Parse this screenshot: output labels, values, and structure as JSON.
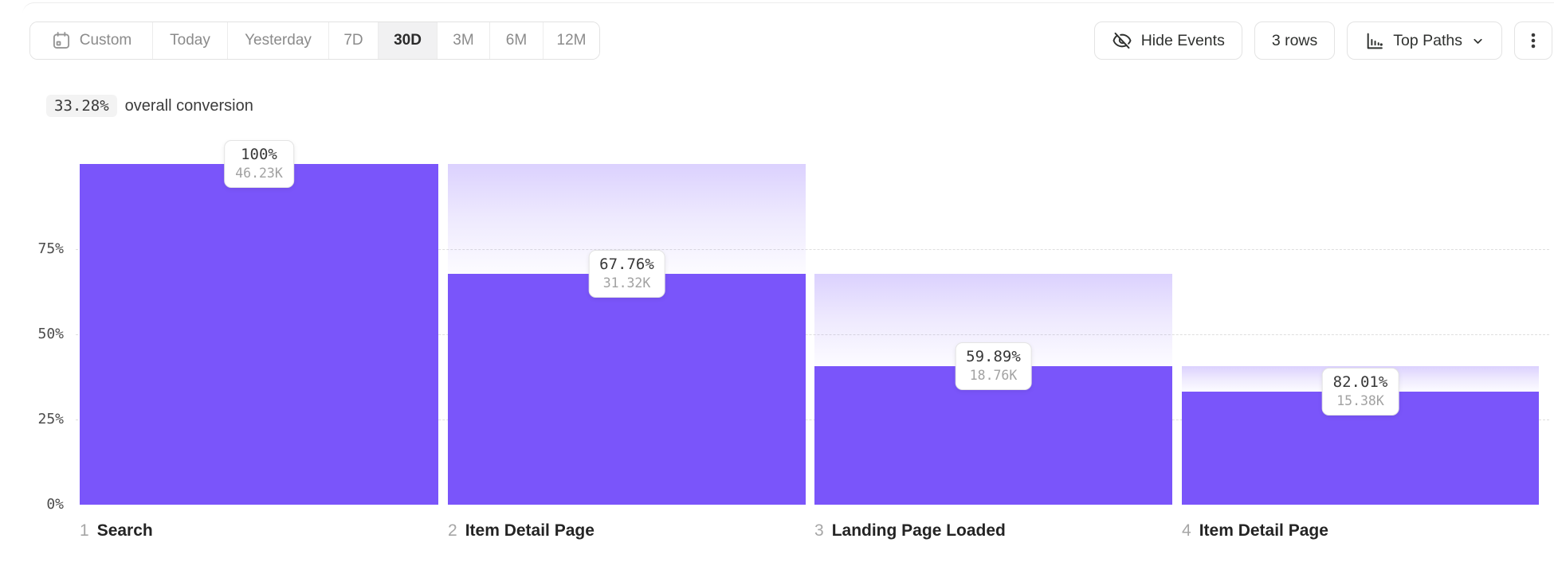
{
  "toolbar": {
    "date_ranges": [
      {
        "label": "Custom",
        "icon": "calendar-icon",
        "selected": false
      },
      {
        "label": "Today",
        "selected": false
      },
      {
        "label": "Yesterday",
        "selected": false
      },
      {
        "label": "7D",
        "selected": false
      },
      {
        "label": "30D",
        "selected": true
      },
      {
        "label": "3M",
        "selected": false
      },
      {
        "label": "6M",
        "selected": false
      },
      {
        "label": "12M",
        "selected": false
      }
    ],
    "hide_events_label": "Hide Events",
    "rows_label": "3 rows",
    "top_paths_label": "Top Paths"
  },
  "summary": {
    "value": "33.28%",
    "suffix": "overall conversion"
  },
  "chart_data": {
    "type": "funnel",
    "overall_conversion": "33.28%",
    "bar_color": "#7A55FA",
    "dropoff_gradient_top": "#D9D0F8",
    "y_axis": {
      "range": [
        0,
        100
      ],
      "grid": "dashed",
      "ticks": [
        {
          "label": "75%",
          "value": 75
        },
        {
          "label": "50%",
          "value": 50
        },
        {
          "label": "25%",
          "value": 25
        },
        {
          "label": "0%",
          "value": 0
        }
      ]
    },
    "steps": [
      {
        "index": "1",
        "name": "Search",
        "step_conversion": "100%",
        "count_label": "46.23K",
        "count": 46230,
        "pct_of_first": 100
      },
      {
        "index": "2",
        "name": "Item Detail Page",
        "step_conversion": "67.76%",
        "count_label": "31.32K",
        "count": 31320,
        "pct_of_first": 67.76
      },
      {
        "index": "3",
        "name": "Landing Page Loaded",
        "step_conversion": "59.89%",
        "count_label": "18.76K",
        "count": 18760,
        "pct_of_first": 40.58
      },
      {
        "index": "4",
        "name": "Item Detail Page",
        "step_conversion": "82.01%",
        "count_label": "15.38K",
        "count": 15380,
        "pct_of_first": 33.27
      }
    ]
  }
}
